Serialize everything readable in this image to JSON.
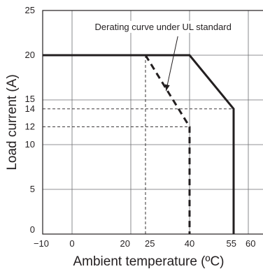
{
  "chart_data": {
    "type": "line",
    "xlabel": "Ambient temperature (ºC)",
    "ylabel": "Load current (A)",
    "xlim": [
      -10,
      65
    ],
    "ylim": [
      0,
      25
    ],
    "x_ticks": [
      {
        "value": -10,
        "label": "−10"
      },
      {
        "value": 0,
        "label": "0"
      },
      {
        "value": 20,
        "label": "20"
      },
      {
        "value": 25,
        "label": "25"
      },
      {
        "value": 40,
        "label": "40"
      },
      {
        "value": 55,
        "label": "55"
      },
      {
        "value": 60,
        "label": "60"
      }
    ],
    "y_ticks": [
      {
        "value": 0,
        "label": "0"
      },
      {
        "value": 5,
        "label": "5"
      },
      {
        "value": 10,
        "label": "10"
      },
      {
        "value": 12,
        "label": "12"
      },
      {
        "value": 14,
        "label": "14"
      },
      {
        "value": 15,
        "label": "15"
      },
      {
        "value": 20,
        "label": "20"
      },
      {
        "value": 25,
        "label": "25"
      }
    ],
    "grid": {
      "x": [
        0,
        20,
        40,
        60
      ],
      "y": [
        5,
        10,
        15,
        20
      ]
    },
    "series": [
      {
        "style": "solid",
        "color": "#231f20",
        "points": [
          [
            -10,
            20
          ],
          [
            40,
            20
          ],
          [
            55,
            14
          ],
          [
            55,
            0
          ]
        ]
      },
      {
        "style": "dashed",
        "color": "#231f20",
        "points": [
          [
            25,
            20
          ],
          [
            40,
            12
          ],
          [
            40,
            0
          ]
        ]
      }
    ],
    "reference_lines": [
      {
        "points": [
          [
            25,
            0
          ],
          [
            25,
            20
          ]
        ]
      },
      {
        "points": [
          [
            -10,
            14
          ],
          [
            55,
            14
          ]
        ]
      },
      {
        "points": [
          [
            -10,
            12
          ],
          [
            40,
            12
          ]
        ]
      }
    ],
    "annotation": {
      "text": "Derating curve under UL standard",
      "points_to": [
        32,
        16
      ]
    }
  }
}
